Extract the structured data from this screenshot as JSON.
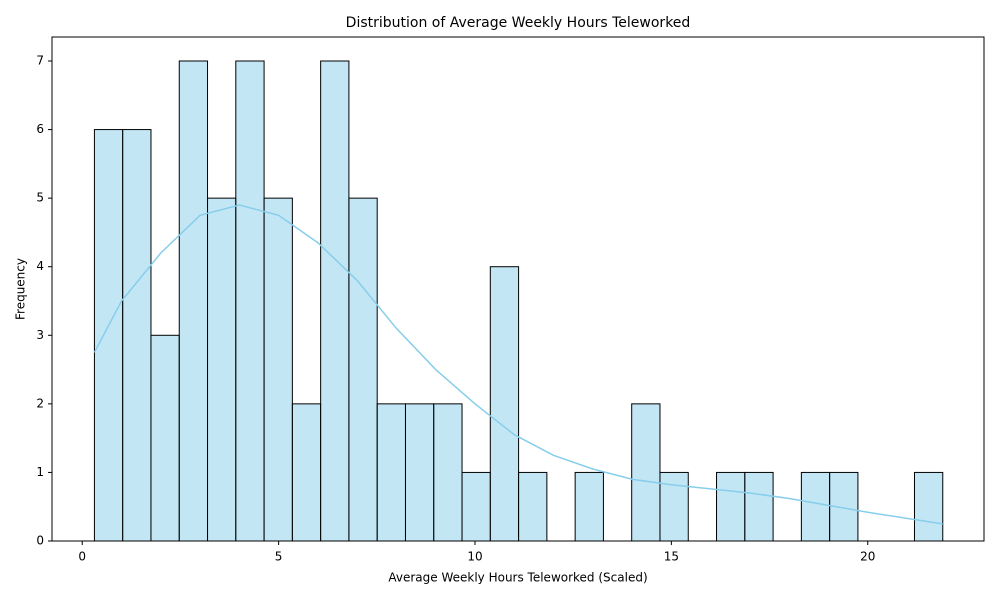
{
  "chart_data": {
    "type": "histogram",
    "title": "Distribution of Average Weekly Hours Teleworked",
    "x_label": "Average Weekly Hours Teleworked (Scaled)",
    "y_label": "Frequency",
    "bins": [
      0.31,
      1.03,
      1.75,
      2.47,
      3.19,
      3.91,
      4.63,
      5.35,
      6.07,
      6.79,
      7.51,
      8.23,
      8.95,
      9.67,
      10.39,
      11.11,
      11.83,
      12.55,
      13.27,
      13.99,
      14.71,
      15.43,
      16.15,
      16.87,
      17.59,
      18.31,
      19.03,
      19.75,
      20.47,
      21.19,
      21.91
    ],
    "values": [
      6,
      6,
      3,
      7,
      5,
      7,
      5,
      2,
      7,
      5,
      2,
      2,
      2,
      1,
      4,
      1,
      0,
      1,
      0,
      2,
      1,
      0,
      1,
      1,
      0,
      1,
      1,
      0,
      0,
      1
    ],
    "color": "#87ceeb",
    "edge_color": "#000000",
    "kde": {
      "x": [
        0.31,
        1,
        2,
        3,
        4,
        5,
        6,
        7,
        8,
        9,
        10,
        11,
        12,
        13,
        14,
        15,
        16,
        17,
        18,
        19,
        20,
        21,
        21.91
      ],
      "values": [
        2.75,
        3.5,
        4.2,
        4.75,
        4.9,
        4.75,
        4.35,
        3.8,
        3.1,
        2.5,
        2.0,
        1.55,
        1.25,
        1.05,
        0.9,
        0.82,
        0.76,
        0.7,
        0.62,
        0.52,
        0.42,
        0.33,
        0.25
      ]
    },
    "xlim": [
      -0.77,
      22.96
    ],
    "ylim": [
      0,
      7.35
    ],
    "xticks": [
      0,
      5,
      10,
      15,
      20
    ],
    "yticks": [
      0,
      1,
      2,
      3,
      4,
      5,
      6,
      7
    ]
  }
}
